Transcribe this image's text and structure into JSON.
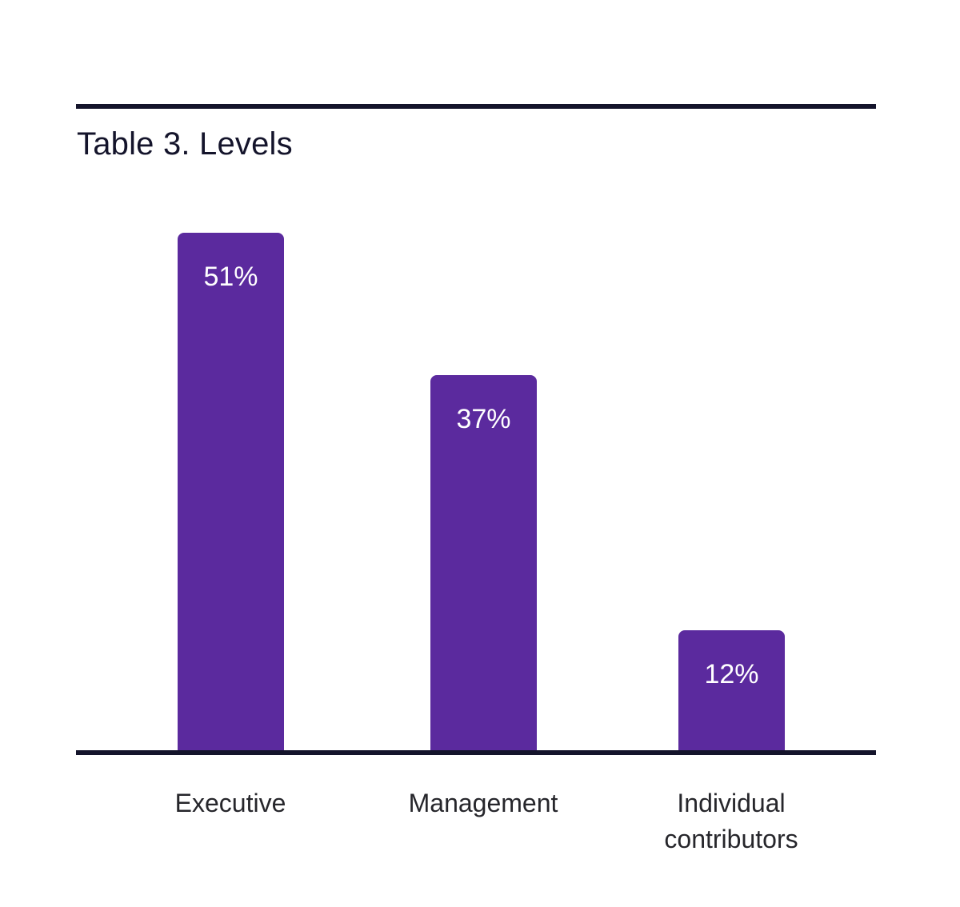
{
  "page": {
    "background_color": "#ffffff"
  },
  "chart_data": {
    "type": "bar",
    "title": "Table 3. Levels",
    "categories": [
      "Executive",
      "Management",
      "Individual contributors"
    ],
    "values": [
      51,
      37,
      12
    ],
    "value_labels": [
      "51%",
      "37%",
      "12%"
    ],
    "xlabel": "",
    "ylabel": "",
    "ylim": [
      0,
      63
    ],
    "grid": false,
    "legend": false,
    "bar_color": "#5b2a9e",
    "axis_color": "#14142b",
    "title_color": "#14142b",
    "value_label_color": "#ffffff",
    "category_label_color": "#26262b"
  }
}
